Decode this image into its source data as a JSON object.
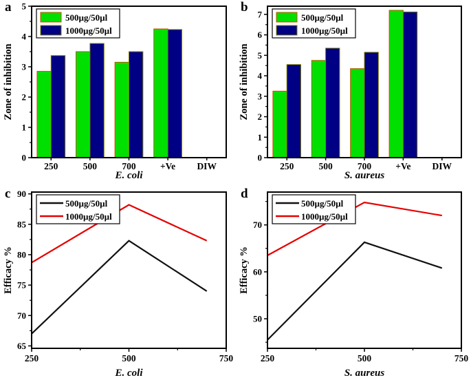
{
  "chart_data": [
    {
      "tag": "a",
      "type": "bar",
      "title": "",
      "ylabel": "Zone of inhibition",
      "xlabel": "E. coli",
      "categories": [
        "250",
        "500",
        "700",
        "+Ve",
        "DIW"
      ],
      "series": [
        {
          "name": "500µg/50µl",
          "color": "#00e000",
          "edge": "#c85000",
          "values": [
            2.85,
            3.5,
            3.15,
            4.25,
            0
          ]
        },
        {
          "name": "1000µg/50µl",
          "color": "#000084",
          "edge": "#808000",
          "values": [
            3.37,
            3.77,
            3.5,
            4.23,
            0
          ]
        }
      ],
      "ylim": [
        0,
        5
      ],
      "yticks": [
        0,
        1,
        2,
        3,
        4,
        5
      ],
      "legend_position": "top-left",
      "grid": false
    },
    {
      "tag": "b",
      "type": "bar",
      "title": "",
      "ylabel": "Zone of inhibition",
      "xlabel": "S. aureus",
      "categories": [
        "250",
        "500",
        "700",
        "+Ve",
        "DIW"
      ],
      "series": [
        {
          "name": "500µg/50µl",
          "color": "#00e000",
          "edge": "#c85000",
          "values": [
            3.25,
            4.75,
            4.35,
            7.2,
            0
          ]
        },
        {
          "name": "1000µg/50µl",
          "color": "#000084",
          "edge": "#808000",
          "values": [
            4.55,
            5.35,
            5.15,
            7.12,
            0
          ]
        }
      ],
      "ylim": [
        0,
        7.4
      ],
      "yticks": [
        0,
        1,
        2,
        3,
        4,
        5,
        6,
        7
      ],
      "legend_position": "top-left",
      "grid": false
    },
    {
      "tag": "c",
      "type": "line",
      "title": "",
      "ylabel": "Efficacy %",
      "xlabel": "E. coli",
      "x": [
        250,
        500,
        700
      ],
      "xticks": [
        250,
        500,
        750
      ],
      "xlim": [
        250,
        750
      ],
      "series": [
        {
          "name": "500µg/50µl",
          "color": "#111111",
          "values": [
            67,
            82.3,
            74
          ]
        },
        {
          "name": "1000µg/50µl",
          "color": "#e60000",
          "values": [
            78.7,
            88.2,
            82.3
          ]
        }
      ],
      "ylim": [
        64.6,
        90.3
      ],
      "yticks": [
        65,
        70,
        75,
        80,
        85,
        90
      ],
      "legend_position": "top-left",
      "grid": false
    },
    {
      "tag": "d",
      "type": "line",
      "title": "",
      "ylabel": "Efficacy %",
      "xlabel": "S. aureus",
      "x": [
        250,
        500,
        700
      ],
      "xticks": [
        250,
        500,
        750
      ],
      "xlim": [
        250,
        750
      ],
      "series": [
        {
          "name": "500µg/50µl",
          "color": "#111111",
          "values": [
            45.5,
            66.3,
            60.8
          ]
        },
        {
          "name": "1000µg/50µl",
          "color": "#e60000",
          "values": [
            63.5,
            74.8,
            72
          ]
        }
      ],
      "ylim": [
        43.7,
        77
      ],
      "yticks": [
        50,
        60,
        70
      ],
      "legend_position": "top-left",
      "grid": false
    }
  ]
}
